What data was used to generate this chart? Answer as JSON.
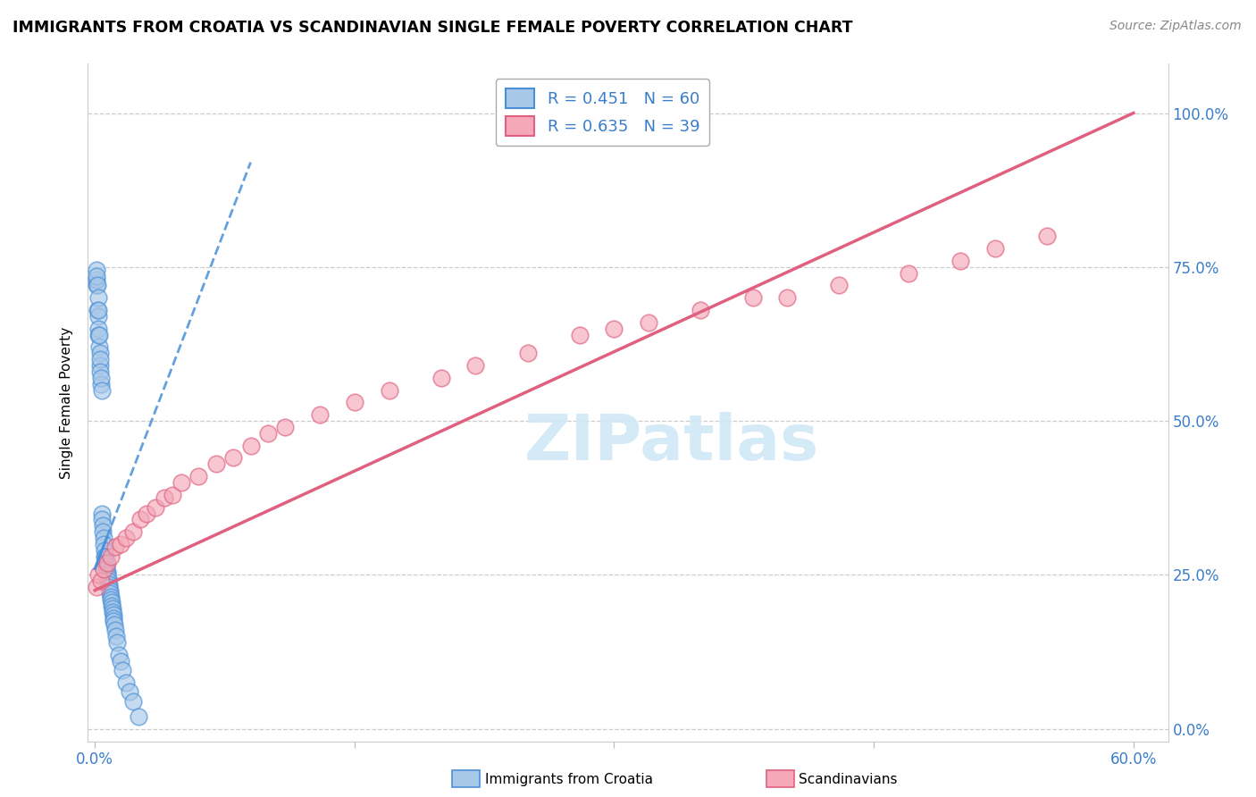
{
  "title": "IMMIGRANTS FROM CROATIA VS SCANDINAVIAN SINGLE FEMALE POVERTY CORRELATION CHART",
  "source": "Source: ZipAtlas.com",
  "ylabel": "Single Female Poverty",
  "ytick_labels": [
    "0.0%",
    "25.0%",
    "50.0%",
    "75.0%",
    "100.0%"
  ],
  "ytick_positions": [
    0.0,
    0.25,
    0.5,
    0.75,
    1.0
  ],
  "blue_color": "#a8c8e8",
  "pink_color": "#f4a8b8",
  "blue_edge_color": "#4a90d9",
  "pink_edge_color": "#e06080",
  "blue_line_color": "#4a90d9",
  "pink_line_color": "#e06080",
  "background_color": "#ffffff",
  "watermark_text": "ZIPatlas",
  "watermark_color": "#d0e8f5",
  "xlim": [
    -0.004,
    0.62
  ],
  "ylim": [
    -0.02,
    1.08
  ],
  "blue_trend_x0": 0.0,
  "blue_trend_y0": 0.26,
  "blue_trend_x1": 0.09,
  "blue_trend_y1": 0.92,
  "blue_trend_solid_x0": 0.0,
  "blue_trend_solid_y0": 0.26,
  "blue_trend_solid_x1": 0.008,
  "blue_trend_solid_y1": 0.32,
  "pink_trend_x0": 0.0,
  "pink_trend_y0": 0.225,
  "pink_trend_x1": 0.6,
  "pink_trend_y1": 1.0,
  "blue_scatter_x": [
    0.0008,
    0.001,
    0.001,
    0.0012,
    0.0015,
    0.0015,
    0.0018,
    0.0018,
    0.002,
    0.002,
    0.0022,
    0.0025,
    0.0025,
    0.0028,
    0.003,
    0.003,
    0.0032,
    0.0035,
    0.0035,
    0.0038,
    0.004,
    0.0042,
    0.0045,
    0.0048,
    0.005,
    0.0052,
    0.0055,
    0.0058,
    0.006,
    0.0062,
    0.0065,
    0.0068,
    0.007,
    0.0072,
    0.0075,
    0.0078,
    0.008,
    0.0082,
    0.0085,
    0.0088,
    0.009,
    0.0092,
    0.0095,
    0.0098,
    0.01,
    0.0102,
    0.0105,
    0.0108,
    0.011,
    0.0115,
    0.012,
    0.0125,
    0.013,
    0.014,
    0.015,
    0.016,
    0.018,
    0.02,
    0.022,
    0.025
  ],
  "blue_scatter_y": [
    0.72,
    0.73,
    0.745,
    0.735,
    0.68,
    0.72,
    0.67,
    0.7,
    0.65,
    0.68,
    0.64,
    0.62,
    0.64,
    0.61,
    0.59,
    0.6,
    0.58,
    0.56,
    0.57,
    0.55,
    0.35,
    0.34,
    0.33,
    0.32,
    0.31,
    0.3,
    0.29,
    0.28,
    0.28,
    0.27,
    0.265,
    0.26,
    0.255,
    0.25,
    0.245,
    0.24,
    0.235,
    0.23,
    0.225,
    0.22,
    0.215,
    0.21,
    0.205,
    0.2,
    0.195,
    0.19,
    0.185,
    0.18,
    0.175,
    0.17,
    0.16,
    0.15,
    0.14,
    0.12,
    0.11,
    0.095,
    0.075,
    0.06,
    0.045,
    0.02
  ],
  "pink_scatter_x": [
    0.001,
    0.002,
    0.0035,
    0.005,
    0.007,
    0.009,
    0.012,
    0.015,
    0.018,
    0.022,
    0.026,
    0.03,
    0.035,
    0.04,
    0.045,
    0.05,
    0.06,
    0.07,
    0.08,
    0.09,
    0.1,
    0.11,
    0.13,
    0.15,
    0.17,
    0.2,
    0.22,
    0.25,
    0.28,
    0.3,
    0.32,
    0.35,
    0.38,
    0.4,
    0.43,
    0.47,
    0.5,
    0.52,
    0.55
  ],
  "pink_scatter_y": [
    0.23,
    0.25,
    0.24,
    0.26,
    0.27,
    0.28,
    0.295,
    0.3,
    0.31,
    0.32,
    0.34,
    0.35,
    0.36,
    0.375,
    0.38,
    0.4,
    0.41,
    0.43,
    0.44,
    0.46,
    0.48,
    0.49,
    0.51,
    0.53,
    0.55,
    0.57,
    0.59,
    0.61,
    0.64,
    0.65,
    0.66,
    0.68,
    0.7,
    0.7,
    0.72,
    0.74,
    0.76,
    0.78,
    0.8
  ],
  "xtick_positions": [
    0.0,
    0.15,
    0.3,
    0.45,
    0.6
  ],
  "xtick_labels": [
    "0.0%",
    "",
    "",
    "",
    "60.0%"
  ],
  "legend_items": [
    {
      "label": "R = 0.451   N = 60",
      "color": "#a8c8e8",
      "edge": "#4a90d9"
    },
    {
      "label": "R = 0.635   N = 39",
      "color": "#f4a8b8",
      "edge": "#e06080"
    }
  ],
  "bottom_legend": [
    {
      "label": "Immigrants from Croatia",
      "color": "#a8c8e8",
      "edge": "#4a90d9"
    },
    {
      "label": "Scandinavians",
      "color": "#f4a8b8",
      "edge": "#e06080"
    }
  ]
}
